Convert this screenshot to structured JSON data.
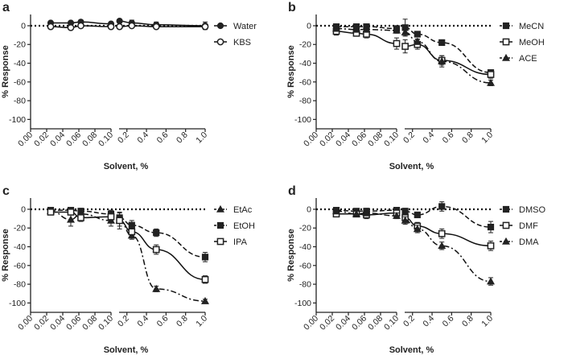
{
  "chart_data": [
    {
      "type": "scatter",
      "panel_label": "a",
      "xlabel": "Solvent, %",
      "ylabel": "% Response",
      "ylim": [
        -110,
        12
      ],
      "yticks": [
        0,
        -20,
        -40,
        -60,
        -80,
        -100
      ],
      "ytick_labels": [
        "0",
        "-20",
        "-40",
        "-60",
        "-80",
        "-100"
      ],
      "xleft": {
        "range": [
          0,
          0.1
        ],
        "ticks": [
          0,
          0.02,
          0.04,
          0.06,
          0.08,
          0.1
        ],
        "tick_labels": [
          "0.00",
          "0.02",
          "0.04",
          "0.06",
          "0.08",
          "0.10"
        ]
      },
      "xright": {
        "range": [
          0.12,
          1.0
        ],
        "ticks": [
          0.2,
          0.4,
          0.6,
          0.8,
          1.0
        ],
        "tick_labels": [
          "0.2",
          "0.4",
          "0.6",
          "0.8",
          "1.0"
        ]
      },
      "reference_line": 0,
      "series": [
        {
          "name": "Water",
          "marker": "circle",
          "x": [
            0.025,
            0.05,
            0.0625,
            0.1,
            0.125,
            0.25,
            0.5,
            1.0
          ],
          "y": [
            3,
            3,
            4,
            2,
            5,
            3,
            1,
            0
          ],
          "err": [
            2,
            2,
            2,
            2,
            2,
            3,
            3,
            4
          ]
        },
        {
          "name": "KBS",
          "marker": "circle-open",
          "x": [
            0.025,
            0.05,
            0.0625,
            0.1,
            0.125,
            0.25,
            0.5,
            1.0
          ],
          "y": [
            -1,
            -2,
            0,
            -1,
            -1,
            0,
            -1,
            -1
          ],
          "err": [
            1,
            1,
            1,
            1,
            2,
            2,
            2,
            3
          ]
        }
      ]
    },
    {
      "type": "scatter",
      "panel_label": "b",
      "xlabel": "Solvent, %",
      "ylabel": "% Response",
      "ylim": [
        -110,
        12
      ],
      "yticks": [
        0,
        -20,
        -40,
        -60,
        -80,
        -100
      ],
      "ytick_labels": [
        "0",
        "-20",
        "-40",
        "-60",
        "-80",
        "-100"
      ],
      "xleft": {
        "range": [
          0,
          0.1
        ],
        "ticks": [
          0,
          0.02,
          0.04,
          0.06,
          0.08,
          0.1
        ],
        "tick_labels": [
          "0.00",
          "0.02",
          "0.04",
          "0.06",
          "0.08",
          "0.10"
        ]
      },
      "xright": {
        "range": [
          0.12,
          1.0
        ],
        "ticks": [
          0.2,
          0.4,
          0.6,
          0.8,
          1.0
        ],
        "tick_labels": [
          "0.2",
          "0.4",
          "0.6",
          "0.8",
          "1.0"
        ]
      },
      "reference_line": 0,
      "series": [
        {
          "name": "MeCN",
          "marker": "square",
          "line": "dashed",
          "x": [
            0.025,
            0.05,
            0.0625,
            0.1,
            0.125,
            0.25,
            0.5,
            1.0
          ],
          "y": [
            -1,
            -1,
            -1,
            -3,
            -2,
            -9,
            -18,
            -50
          ],
          "err": [
            2,
            2,
            2,
            3,
            9,
            3,
            3,
            3
          ]
        },
        {
          "name": "MeOH",
          "marker": "square-open",
          "line": "solid",
          "x": [
            0.025,
            0.05,
            0.0625,
            0.1,
            0.125,
            0.25,
            0.5,
            1.0
          ],
          "y": [
            -6,
            -8,
            -9,
            -19,
            -22,
            -20,
            -37,
            -52
          ],
          "err": [
            4,
            3,
            4,
            6,
            7,
            5,
            5,
            4
          ]
        },
        {
          "name": "ACE",
          "marker": "triangle",
          "line": "dashdot",
          "x": [
            0.025,
            0.05,
            0.0625,
            0.1,
            0.125,
            0.25,
            0.5,
            1.0
          ],
          "y": [
            -3,
            -4,
            -4,
            -5,
            -7,
            -17,
            -38,
            -61
          ],
          "err": [
            3,
            3,
            3,
            3,
            4,
            3,
            6,
            3
          ]
        }
      ]
    },
    {
      "type": "scatter",
      "panel_label": "c",
      "xlabel": "Solvent, %",
      "ylabel": "% Response",
      "ylim": [
        -110,
        12
      ],
      "yticks": [
        0,
        -20,
        -40,
        -60,
        -80,
        -100
      ],
      "ytick_labels": [
        "0",
        "-20",
        "-40",
        "-60",
        "-80",
        "-100"
      ],
      "xleft": {
        "range": [
          0,
          0.1
        ],
        "ticks": [
          0,
          0.02,
          0.04,
          0.06,
          0.08,
          0.1
        ],
        "tick_labels": [
          "0.00",
          "0.02",
          "0.04",
          "0.06",
          "0.08",
          "0.10"
        ]
      },
      "xright": {
        "range": [
          0.12,
          1.0
        ],
        "ticks": [
          0.2,
          0.4,
          0.6,
          0.8,
          1.0
        ],
        "tick_labels": [
          "0.2",
          "0.4",
          "0.6",
          "0.8",
          "1.0"
        ]
      },
      "reference_line": 0,
      "series": [
        {
          "name": "EtAc",
          "marker": "triangle",
          "line": "dashdot",
          "x": [
            0.025,
            0.05,
            0.0625,
            0.1,
            0.125,
            0.25,
            0.5,
            1.0
          ],
          "y": [
            -2,
            -11,
            -5,
            -12,
            -12,
            -28,
            -85,
            -98
          ],
          "err": [
            3,
            7,
            4,
            6,
            9,
            4,
            3,
            2
          ]
        },
        {
          "name": "EtOH",
          "marker": "square",
          "line": "dashed",
          "x": [
            0.025,
            0.05,
            0.0625,
            0.1,
            0.125,
            0.25,
            0.5,
            1.0
          ],
          "y": [
            -1,
            -1,
            -2,
            -5,
            -9,
            -17,
            -25,
            -51
          ],
          "err": [
            2,
            2,
            3,
            4,
            5,
            5,
            4,
            5
          ]
        },
        {
          "name": "IPA",
          "marker": "square-open",
          "line": "solid",
          "x": [
            0.025,
            0.05,
            0.0625,
            0.1,
            0.125,
            0.25,
            0.5,
            1.0
          ],
          "y": [
            -3,
            -3,
            -9,
            -8,
            -12,
            -24,
            -43,
            -75
          ],
          "err": [
            3,
            3,
            4,
            5,
            6,
            5,
            5,
            4
          ]
        }
      ]
    },
    {
      "type": "scatter",
      "panel_label": "d",
      "xlabel": "Solvent, %",
      "ylabel": "% Response",
      "ylim": [
        -110,
        12
      ],
      "yticks": [
        0,
        -20,
        -40,
        -60,
        -80,
        -100
      ],
      "ytick_labels": [
        "0",
        "-20",
        "-40",
        "-60",
        "-80",
        "-100"
      ],
      "xleft": {
        "range": [
          0,
          0.1
        ],
        "ticks": [
          0,
          0.02,
          0.04,
          0.06,
          0.08,
          0.1
        ],
        "tick_labels": [
          "0.00",
          "0.02",
          "0.04",
          "0.06",
          "0.08",
          "0.10"
        ]
      },
      "xright": {
        "range": [
          0.12,
          1.0
        ],
        "ticks": [
          0.2,
          0.4,
          0.6,
          0.8,
          1.0
        ],
        "tick_labels": [
          "0.2",
          "0.4",
          "0.6",
          "0.8",
          "1.0"
        ]
      },
      "reference_line": 0,
      "series": [
        {
          "name": "DMSO",
          "marker": "square",
          "line": "dashed",
          "x": [
            0.025,
            0.05,
            0.0625,
            0.1,
            0.125,
            0.25,
            0.5,
            1.0
          ],
          "y": [
            -1,
            -2,
            -2,
            -1,
            -2,
            -6,
            3,
            -19
          ],
          "err": [
            2,
            2,
            3,
            3,
            3,
            3,
            5,
            6
          ]
        },
        {
          "name": "DMF",
          "marker": "square-open",
          "line": "solid",
          "x": [
            0.025,
            0.05,
            0.0625,
            0.1,
            0.125,
            0.25,
            0.5,
            1.0
          ],
          "y": [
            -5,
            -5,
            -6,
            -4,
            -9,
            -18,
            -26,
            -39
          ],
          "err": [
            3,
            3,
            4,
            4,
            4,
            4,
            5,
            5
          ]
        },
        {
          "name": "DMA",
          "marker": "triangle",
          "line": "dashdot",
          "x": [
            0.025,
            0.05,
            0.0625,
            0.1,
            0.125,
            0.25,
            0.5,
            1.0
          ],
          "y": [
            -2,
            -5,
            -4,
            -7,
            -12,
            -21,
            -39,
            -77
          ],
          "err": [
            3,
            3,
            3,
            3,
            4,
            4,
            4,
            4
          ]
        }
      ]
    }
  ]
}
